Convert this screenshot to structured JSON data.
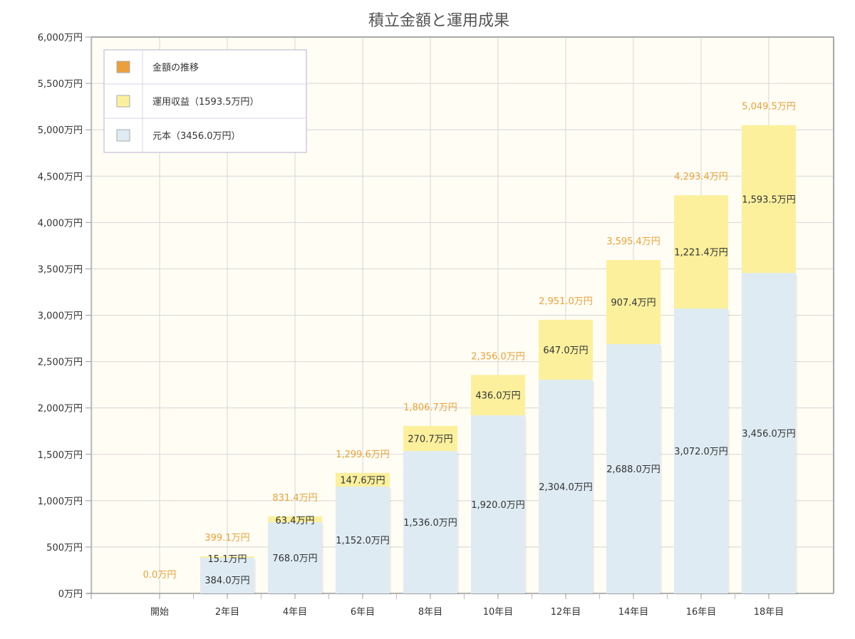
{
  "chart_data": {
    "type": "bar",
    "stacked": true,
    "title": "積立金額と運用成果",
    "categories": [
      "開始",
      "2年目",
      "4年目",
      "6年目",
      "8年目",
      "10年目",
      "12年目",
      "14年目",
      "16年目",
      "18年目"
    ],
    "series": [
      {
        "name": "元本（3456.0万円）",
        "color": "#deebf3",
        "values": [
          0,
          384.0,
          768.0,
          1152.0,
          1536.0,
          1920.0,
          2304.0,
          2688.0,
          3072.0,
          3456.0
        ],
        "labels": [
          "",
          "384.0万円",
          "768.0万円",
          "1,152.0万円",
          "1,536.0万円",
          "1,920.0万円",
          "2,304.0万円",
          "2,688.0万円",
          "3,072.0万円",
          "3,456.0万円"
        ]
      },
      {
        "name": "運用収益（1593.5万円）",
        "color": "#fcf09d",
        "values": [
          0,
          15.1,
          63.4,
          147.6,
          270.7,
          436.0,
          647.0,
          907.4,
          1221.4,
          1593.5
        ],
        "labels": [
          "",
          "15.1万円",
          "63.4万円",
          "147.6万円",
          "270.7万円",
          "436.0万円",
          "647.0万円",
          "907.4万円",
          "1,221.4万円",
          "1,593.5万円"
        ]
      }
    ],
    "totals": {
      "name": "金額の推移",
      "color": "#eba03a",
      "values": [
        0.0,
        399.1,
        831.4,
        1299.6,
        1806.7,
        2356.0,
        2951.0,
        3595.4,
        4293.4,
        5049.5
      ],
      "labels": [
        "0.0万円",
        "399.1万円",
        "831.4万円",
        "1,299.6万円",
        "1,806.7万円",
        "2,356.0万円",
        "2,951.0万円",
        "3,595.4万円",
        "4,293.4万円",
        "5,049.5万円"
      ]
    },
    "ylim": [
      0,
      6000
    ],
    "yticks": [
      0,
      500,
      1000,
      1500,
      2000,
      2500,
      3000,
      3500,
      4000,
      4500,
      5000,
      5500,
      6000
    ],
    "ytick_labels": [
      "0万円",
      "500万円",
      "1,000万円",
      "1,500万円",
      "2,000万円",
      "2,500万円",
      "3,000万円",
      "3,500万円",
      "4,000万円",
      "4,500万円",
      "5,000万円",
      "5,500万円",
      "6,000万円"
    ],
    "grid": true,
    "legend_position": "top-left",
    "legend_order": [
      "金額の推移",
      "運用収益（1593.5万円）",
      "元本（3456.0万円）"
    ]
  }
}
